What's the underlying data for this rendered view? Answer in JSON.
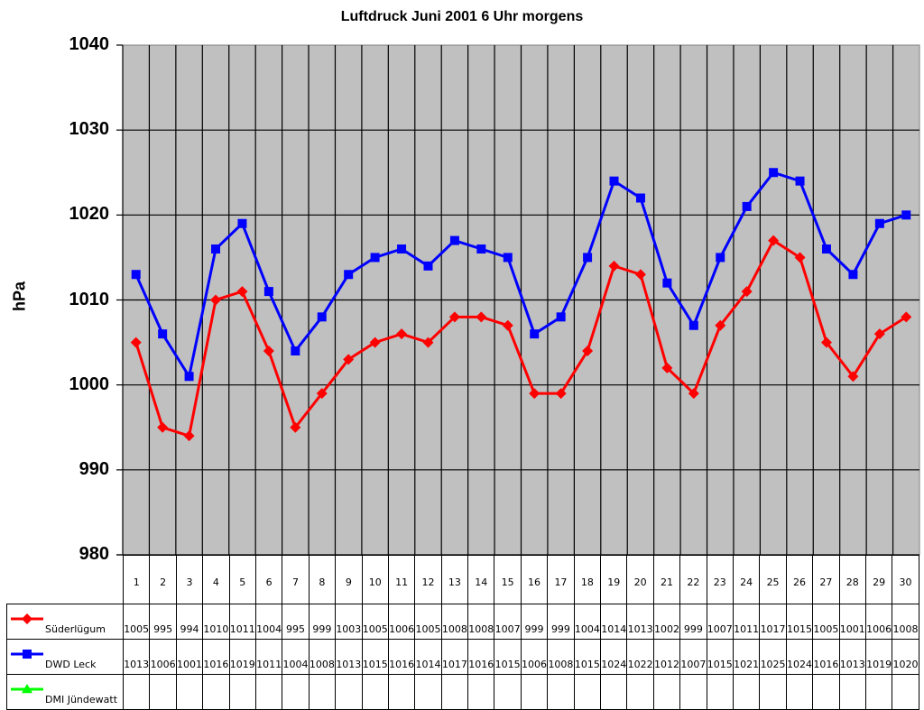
{
  "chart_data": {
    "type": "line",
    "title": "Luftdruck Juni 2001 6 Uhr morgens",
    "xlabel": "",
    "ylabel": "hPa",
    "ylim": [
      980,
      1040
    ],
    "yticks": [
      980,
      990,
      1000,
      1010,
      1020,
      1030,
      1040
    ],
    "grid": true,
    "plot_background": "#c0c0c0",
    "legend_position": "data-table",
    "categories": [
      "1",
      "2",
      "3",
      "4",
      "5",
      "6",
      "7",
      "8",
      "9",
      "10",
      "11",
      "12",
      "13",
      "14",
      "15",
      "16",
      "17",
      "18",
      "19",
      "20",
      "21",
      "22",
      "23",
      "24",
      "25",
      "26",
      "27",
      "28",
      "29",
      "30"
    ],
    "series": [
      {
        "name": "Süderlügum",
        "color": "#ff0000",
        "marker": "diamond",
        "values": [
          1005,
          995,
          994,
          1010,
          1011,
          1004,
          995,
          999,
          1003,
          1005,
          1006,
          1005,
          1008,
          1008,
          1007,
          999,
          999,
          1004,
          1014,
          1013,
          1002,
          999,
          1007,
          1011,
          1017,
          1015,
          1005,
          1001,
          1006,
          1008
        ]
      },
      {
        "name": "DWD Leck",
        "color": "#0000ff",
        "marker": "square",
        "values": [
          1013,
          1006,
          1001,
          1016,
          1019,
          1011,
          1004,
          1008,
          1013,
          1015,
          1016,
          1014,
          1017,
          1016,
          1015,
          1006,
          1008,
          1015,
          1024,
          1022,
          1012,
          1007,
          1015,
          1021,
          1025,
          1024,
          1016,
          1013,
          1019,
          1020
        ]
      },
      {
        "name": "DMI Jündewatt",
        "color": "#00ff00",
        "marker": "triangle",
        "values": []
      }
    ]
  }
}
